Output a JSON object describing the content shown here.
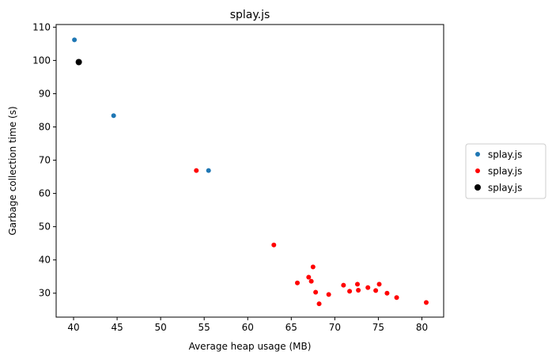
{
  "chart_data": {
    "type": "scatter",
    "title": "splay.js",
    "xlabel": "Average heap usage (MB)",
    "ylabel": "Garbage collection time (s)",
    "xlim": [
      38.0,
      82.5
    ],
    "ylim": [
      22.8,
      110.8
    ],
    "xticks": [
      40,
      45,
      50,
      55,
      60,
      65,
      70,
      75,
      80
    ],
    "yticks": [
      30,
      40,
      50,
      60,
      70,
      80,
      90,
      100,
      110
    ],
    "grid": false,
    "legend_position": "right",
    "series": [
      {
        "name": "splay.js",
        "color": "#1f77b4",
        "marker_size": "small",
        "points": [
          [
            40.1,
            106.2
          ],
          [
            44.6,
            83.4
          ],
          [
            55.5,
            66.9
          ]
        ]
      },
      {
        "name": "splay.js",
        "color": "#ff0000",
        "marker_size": "small",
        "points": [
          [
            54.1,
            66.9
          ],
          [
            63.0,
            44.5
          ],
          [
            65.7,
            33.1
          ],
          [
            67.0,
            34.8
          ],
          [
            67.3,
            33.6
          ],
          [
            67.5,
            37.9
          ],
          [
            67.8,
            30.3
          ],
          [
            68.2,
            26.8
          ],
          [
            69.3,
            29.6
          ],
          [
            71.0,
            32.4
          ],
          [
            71.7,
            30.6
          ],
          [
            72.6,
            32.7
          ],
          [
            72.7,
            30.9
          ],
          [
            73.8,
            31.7
          ],
          [
            74.7,
            30.8
          ],
          [
            75.1,
            32.7
          ],
          [
            76.0,
            30.0
          ],
          [
            77.1,
            28.7
          ],
          [
            80.5,
            27.2
          ]
        ]
      },
      {
        "name": "splay.js",
        "color": "#000000",
        "marker_size": "large",
        "points": [
          [
            40.6,
            99.5
          ]
        ]
      }
    ]
  }
}
